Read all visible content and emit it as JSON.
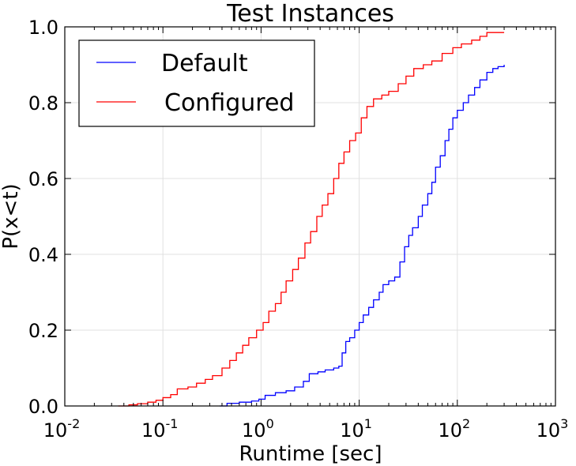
{
  "chart_data": {
    "type": "line",
    "title": "Test Instances",
    "xlabel": "Runtime [sec]",
    "ylabel": "P(x<t)",
    "x_scale": "log",
    "xlim": [
      0.01,
      1000
    ],
    "ylim": [
      0.0,
      1.0
    ],
    "grid": true,
    "legend_position": "top-left",
    "x_ticks": [
      {
        "base": "10",
        "exp": "-2",
        "value": 0.01
      },
      {
        "base": "10",
        "exp": "-1",
        "value": 0.1
      },
      {
        "base": "10",
        "exp": "0",
        "value": 1
      },
      {
        "base": "10",
        "exp": "1",
        "value": 10
      },
      {
        "base": "10",
        "exp": "2",
        "value": 100
      },
      {
        "base": "10",
        "exp": "3",
        "value": 1000
      }
    ],
    "y_ticks": [
      "0.0",
      "0.2",
      "0.4",
      "0.6",
      "0.8",
      "1.0"
    ],
    "series": [
      {
        "name": "Default",
        "color": "#0000ff",
        "points": [
          [
            0.38,
            0.0
          ],
          [
            0.45,
            0.007
          ],
          [
            0.6,
            0.01
          ],
          [
            0.8,
            0.013
          ],
          [
            0.95,
            0.018
          ],
          [
            1.1,
            0.028
          ],
          [
            1.4,
            0.035
          ],
          [
            1.8,
            0.04
          ],
          [
            2.2,
            0.05
          ],
          [
            2.7,
            0.065
          ],
          [
            3.1,
            0.085
          ],
          [
            3.8,
            0.09
          ],
          [
            4.5,
            0.095
          ],
          [
            5.5,
            0.1
          ],
          [
            6.2,
            0.105
          ],
          [
            6.7,
            0.14
          ],
          [
            7.3,
            0.17
          ],
          [
            8.0,
            0.18
          ],
          [
            9.0,
            0.2
          ],
          [
            10.0,
            0.22
          ],
          [
            11.0,
            0.24
          ],
          [
            12.5,
            0.26
          ],
          [
            14.0,
            0.28
          ],
          [
            16.0,
            0.3
          ],
          [
            17.5,
            0.32
          ],
          [
            20.0,
            0.33
          ],
          [
            23.0,
            0.34
          ],
          [
            26.0,
            0.38
          ],
          [
            29.0,
            0.42
          ],
          [
            32.0,
            0.45
          ],
          [
            35.0,
            0.47
          ],
          [
            40.0,
            0.5
          ],
          [
            44.0,
            0.53
          ],
          [
            50.0,
            0.56
          ],
          [
            55.0,
            0.59
          ],
          [
            60.0,
            0.63
          ],
          [
            67.0,
            0.66
          ],
          [
            75.0,
            0.7
          ],
          [
            82.0,
            0.73
          ],
          [
            90.0,
            0.76
          ],
          [
            100.0,
            0.78
          ],
          [
            115.0,
            0.8
          ],
          [
            130.0,
            0.82
          ],
          [
            150.0,
            0.84
          ],
          [
            170.0,
            0.86
          ],
          [
            200.0,
            0.88
          ],
          [
            230.0,
            0.89
          ],
          [
            260.0,
            0.895
          ],
          [
            300.0,
            0.9
          ]
        ]
      },
      {
        "name": "Configured",
        "color": "#ff0000",
        "points": [
          [
            0.035,
            0.0
          ],
          [
            0.045,
            0.003
          ],
          [
            0.055,
            0.006
          ],
          [
            0.07,
            0.01
          ],
          [
            0.085,
            0.015
          ],
          [
            0.1,
            0.022
          ],
          [
            0.12,
            0.03
          ],
          [
            0.14,
            0.045
          ],
          [
            0.18,
            0.05
          ],
          [
            0.22,
            0.06
          ],
          [
            0.27,
            0.07
          ],
          [
            0.32,
            0.08
          ],
          [
            0.4,
            0.1
          ],
          [
            0.48,
            0.12
          ],
          [
            0.56,
            0.14
          ],
          [
            0.65,
            0.16
          ],
          [
            0.75,
            0.18
          ],
          [
            0.9,
            0.2
          ],
          [
            1.05,
            0.22
          ],
          [
            1.2,
            0.25
          ],
          [
            1.4,
            0.27
          ],
          [
            1.6,
            0.3
          ],
          [
            1.8,
            0.33
          ],
          [
            2.1,
            0.36
          ],
          [
            2.4,
            0.39
          ],
          [
            2.8,
            0.43
          ],
          [
            3.2,
            0.46
          ],
          [
            3.7,
            0.5
          ],
          [
            4.2,
            0.53
          ],
          [
            4.8,
            0.56
          ],
          [
            5.5,
            0.6
          ],
          [
            6.2,
            0.64
          ],
          [
            7.0,
            0.67
          ],
          [
            8.0,
            0.7
          ],
          [
            9.2,
            0.72
          ],
          [
            10.5,
            0.76
          ],
          [
            12.0,
            0.79
          ],
          [
            14.0,
            0.81
          ],
          [
            17.0,
            0.82
          ],
          [
            20.0,
            0.83
          ],
          [
            25.0,
            0.85
          ],
          [
            30.0,
            0.87
          ],
          [
            36.0,
            0.89
          ],
          [
            45.0,
            0.9
          ],
          [
            55.0,
            0.91
          ],
          [
            70.0,
            0.93
          ],
          [
            90.0,
            0.945
          ],
          [
            110.0,
            0.955
          ],
          [
            140.0,
            0.965
          ],
          [
            170.0,
            0.975
          ],
          [
            200.0,
            0.985
          ],
          [
            300.0,
            0.985
          ]
        ]
      }
    ]
  }
}
